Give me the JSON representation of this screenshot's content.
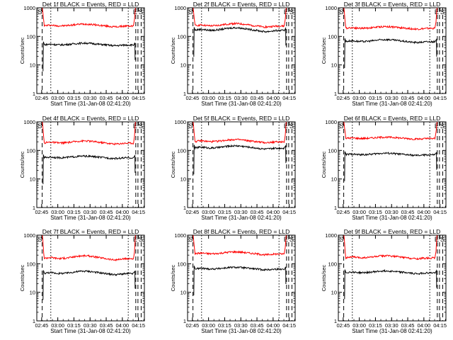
{
  "figure": {
    "colors": {
      "events": "#000000",
      "lld": "#ff0000",
      "background": "#ffffff"
    }
  },
  "chart_data": [
    {
      "type": "line",
      "title": "Det 1f BLACK = Events, RED = LLD",
      "ylabel": "Counts/sec",
      "xlabel": "Start Time (31-Jan-08 02:41:20)",
      "x_ticks": [
        "02:45",
        "03:00",
        "03:15",
        "03:30",
        "03:45",
        "04:00",
        "04:15"
      ],
      "y_ticks": [
        "1",
        "10",
        "100",
        "1000"
      ],
      "ylim": [
        1,
        1000
      ],
      "y_scale": "log",
      "x_range_minutes": [
        0,
        100
      ],
      "corner_labels": {
        "left": "S",
        "right_e": "E",
        "right_s": "S"
      },
      "series": [
        {
          "color": "red",
          "baseline": 230,
          "bump": 40
        },
        {
          "color": "black",
          "baseline": 50,
          "bump": 8
        }
      ],
      "saa_dashed": [
        5,
        92
      ],
      "saa_dotted": [
        13,
        85
      ],
      "right_dashed": [
        94,
        97
      ]
    },
    {
      "type": "line",
      "title": "Det 2f BLACK = Events, RED = LLD",
      "ylabel": "Counts/sec",
      "xlabel": "Start Time (31-Jan-08 02:41:20)",
      "x_ticks": [
        "02:45",
        "03:00",
        "03:15",
        "03:30",
        "03:45",
        "04:00",
        "04:15"
      ],
      "y_ticks": [
        "1",
        "10",
        "100",
        "1000"
      ],
      "ylim": [
        1,
        1000
      ],
      "y_scale": "log",
      "x_range_minutes": [
        0,
        100
      ],
      "corner_labels": {
        "left": "S",
        "right_e": "E",
        "right_s": "S"
      },
      "series": [
        {
          "color": "red",
          "baseline": 230,
          "bump": 50
        },
        {
          "color": "black",
          "baseline": 160,
          "bump": 40
        }
      ],
      "saa_dashed": [
        5,
        92
      ],
      "saa_dotted": [
        13,
        85
      ],
      "right_dashed": [
        94,
        97
      ]
    },
    {
      "type": "line",
      "title": "Det 3f BLACK = Events, RED = LLD",
      "ylabel": "Counts/sec",
      "xlabel": "Start Time (31-Jan-08 02:41:20)",
      "x_ticks": [
        "02:45",
        "03:00",
        "03:15",
        "03:30",
        "03:45",
        "04:00",
        "04:15"
      ],
      "y_ticks": [
        "1",
        "10",
        "100",
        "1000"
      ],
      "ylim": [
        1,
        1000
      ],
      "y_scale": "log",
      "x_range_minutes": [
        0,
        100
      ],
      "corner_labels": {
        "left": "S",
        "right_e": "E",
        "right_s": "S"
      },
      "series": [
        {
          "color": "red",
          "baseline": 190,
          "bump": 30
        },
        {
          "color": "black",
          "baseline": 65,
          "bump": 12
        }
      ],
      "saa_dashed": [
        5,
        92
      ],
      "saa_dotted": [
        13,
        85
      ],
      "right_dashed": [
        94,
        97
      ]
    },
    {
      "type": "line",
      "title": "Det 4f BLACK = Events, RED = LLD",
      "ylabel": "Counts/sec",
      "xlabel": "Start Time (31-Jan-08 02:41:20)",
      "x_ticks": [
        "02:45",
        "03:00",
        "03:15",
        "03:30",
        "03:45",
        "04:00",
        "04:15"
      ],
      "y_ticks": [
        "1",
        "10",
        "100",
        "1000"
      ],
      "ylim": [
        1,
        1000
      ],
      "y_scale": "log",
      "x_range_minutes": [
        0,
        100
      ],
      "corner_labels": {
        "left": "S",
        "right_e": "E",
        "right_s": "S"
      },
      "series": [
        {
          "color": "red",
          "baseline": 180,
          "bump": 35
        },
        {
          "color": "black",
          "baseline": 55,
          "bump": 8
        }
      ],
      "saa_dashed": [
        5,
        92
      ],
      "saa_dotted": [
        13,
        85
      ],
      "right_dashed": [
        94,
        97
      ]
    },
    {
      "type": "line",
      "title": "Det 5f BLACK = Events, RED = LLD",
      "ylabel": "Counts/sec",
      "xlabel": "Start Time (31-Jan-08 02:41:20)",
      "x_ticks": [
        "02:45",
        "03:00",
        "03:15",
        "03:30",
        "03:45",
        "04:00",
        "04:15"
      ],
      "y_ticks": [
        "1",
        "10",
        "100",
        "1000"
      ],
      "ylim": [
        1,
        1000
      ],
      "y_scale": "log",
      "x_range_minutes": [
        0,
        100
      ],
      "corner_labels": {
        "left": "S",
        "right_e": "E",
        "right_s": "S"
      },
      "series": [
        {
          "color": "red",
          "baseline": 200,
          "bump": 40
        },
        {
          "color": "black",
          "baseline": 120,
          "bump": 25
        }
      ],
      "saa_dashed": [
        5,
        92
      ],
      "saa_dotted": [
        13,
        85
      ],
      "right_dashed": [
        94,
        97
      ]
    },
    {
      "type": "line",
      "title": "Det 6f BLACK = Events, RED = LLD",
      "ylabel": "Counts/sec",
      "xlabel": "Start Time (31-Jan-08 02:41:20)",
      "x_ticks": [
        "02:45",
        "03:00",
        "03:15",
        "03:30",
        "03:45",
        "04:00",
        "04:15"
      ],
      "y_ticks": [
        "1",
        "10",
        "100",
        "1000"
      ],
      "ylim": [
        1,
        1000
      ],
      "y_scale": "log",
      "x_range_minutes": [
        0,
        100
      ],
      "corner_labels": {
        "left": "S",
        "right_e": "E",
        "right_s": "S"
      },
      "series": [
        {
          "color": "red",
          "baseline": 260,
          "bump": 30
        },
        {
          "color": "black",
          "baseline": 70,
          "bump": 10
        }
      ],
      "saa_dashed": [
        5,
        92
      ],
      "saa_dotted": [
        13,
        85
      ],
      "right_dashed": [
        94,
        97
      ]
    },
    {
      "type": "line",
      "title": "Det 7f BLACK = Events, RED = LLD",
      "ylabel": "Counts/sec",
      "xlabel": "Start Time (31-Jan-08 02:41:20)",
      "x_ticks": [
        "02:45",
        "03:00",
        "03:15",
        "03:30",
        "03:45",
        "04:00",
        "04:15"
      ],
      "y_ticks": [
        "1",
        "10",
        "100",
        "1000"
      ],
      "ylim": [
        1,
        1000
      ],
      "y_scale": "log",
      "x_range_minutes": [
        0,
        100
      ],
      "corner_labels": {
        "left": "S",
        "right_e": "E",
        "right_s": "S"
      },
      "series": [
        {
          "color": "red",
          "baseline": 150,
          "bump": 40
        },
        {
          "color": "black",
          "baseline": 45,
          "bump": 10
        }
      ],
      "saa_dashed": [
        5,
        92
      ],
      "saa_dotted": [
        13,
        85
      ],
      "right_dashed": [
        94,
        97
      ]
    },
    {
      "type": "line",
      "title": "Det 8f BLACK = Events, RED = LLD",
      "ylabel": "Counts/sec",
      "xlabel": "Start Time (31-Jan-08 02:41:20)",
      "x_ticks": [
        "02:45",
        "03:00",
        "03:15",
        "03:30",
        "03:45",
        "04:00",
        "04:15"
      ],
      "y_ticks": [
        "1",
        "10",
        "100",
        "1000"
      ],
      "ylim": [
        1,
        1000
      ],
      "y_scale": "log",
      "x_range_minutes": [
        0,
        100
      ],
      "corner_labels": {
        "left": "S",
        "right_e": "E",
        "right_s": "S"
      },
      "series": [
        {
          "color": "red",
          "baseline": 220,
          "bump": 40
        },
        {
          "color": "black",
          "baseline": 65,
          "bump": 10
        }
      ],
      "saa_dashed": [
        5,
        92
      ],
      "saa_dotted": [
        13,
        85
      ],
      "right_dashed": [
        94,
        97
      ]
    },
    {
      "type": "line",
      "title": "Det 9f BLACK = Events, RED = LLD",
      "ylabel": "Counts/sec",
      "xlabel": "Start Time (31-Jan-08 02:41:20)",
      "x_ticks": [
        "02:45",
        "03:00",
        "03:15",
        "03:30",
        "03:45",
        "04:00",
        "04:15"
      ],
      "y_ticks": [
        "1",
        "10",
        "100",
        "1000"
      ],
      "ylim": [
        1,
        1000
      ],
      "y_scale": "log",
      "x_range_minutes": [
        0,
        100
      ],
      "corner_labels": {
        "left": "S",
        "right_e": "E",
        "right_s": "S"
      },
      "series": [
        {
          "color": "red",
          "baseline": 160,
          "bump": 30
        },
        {
          "color": "black",
          "baseline": 48,
          "bump": 8
        }
      ],
      "saa_dashed": [
        5,
        92
      ],
      "saa_dotted": [
        13,
        85
      ],
      "right_dashed": [
        94,
        97
      ]
    }
  ]
}
